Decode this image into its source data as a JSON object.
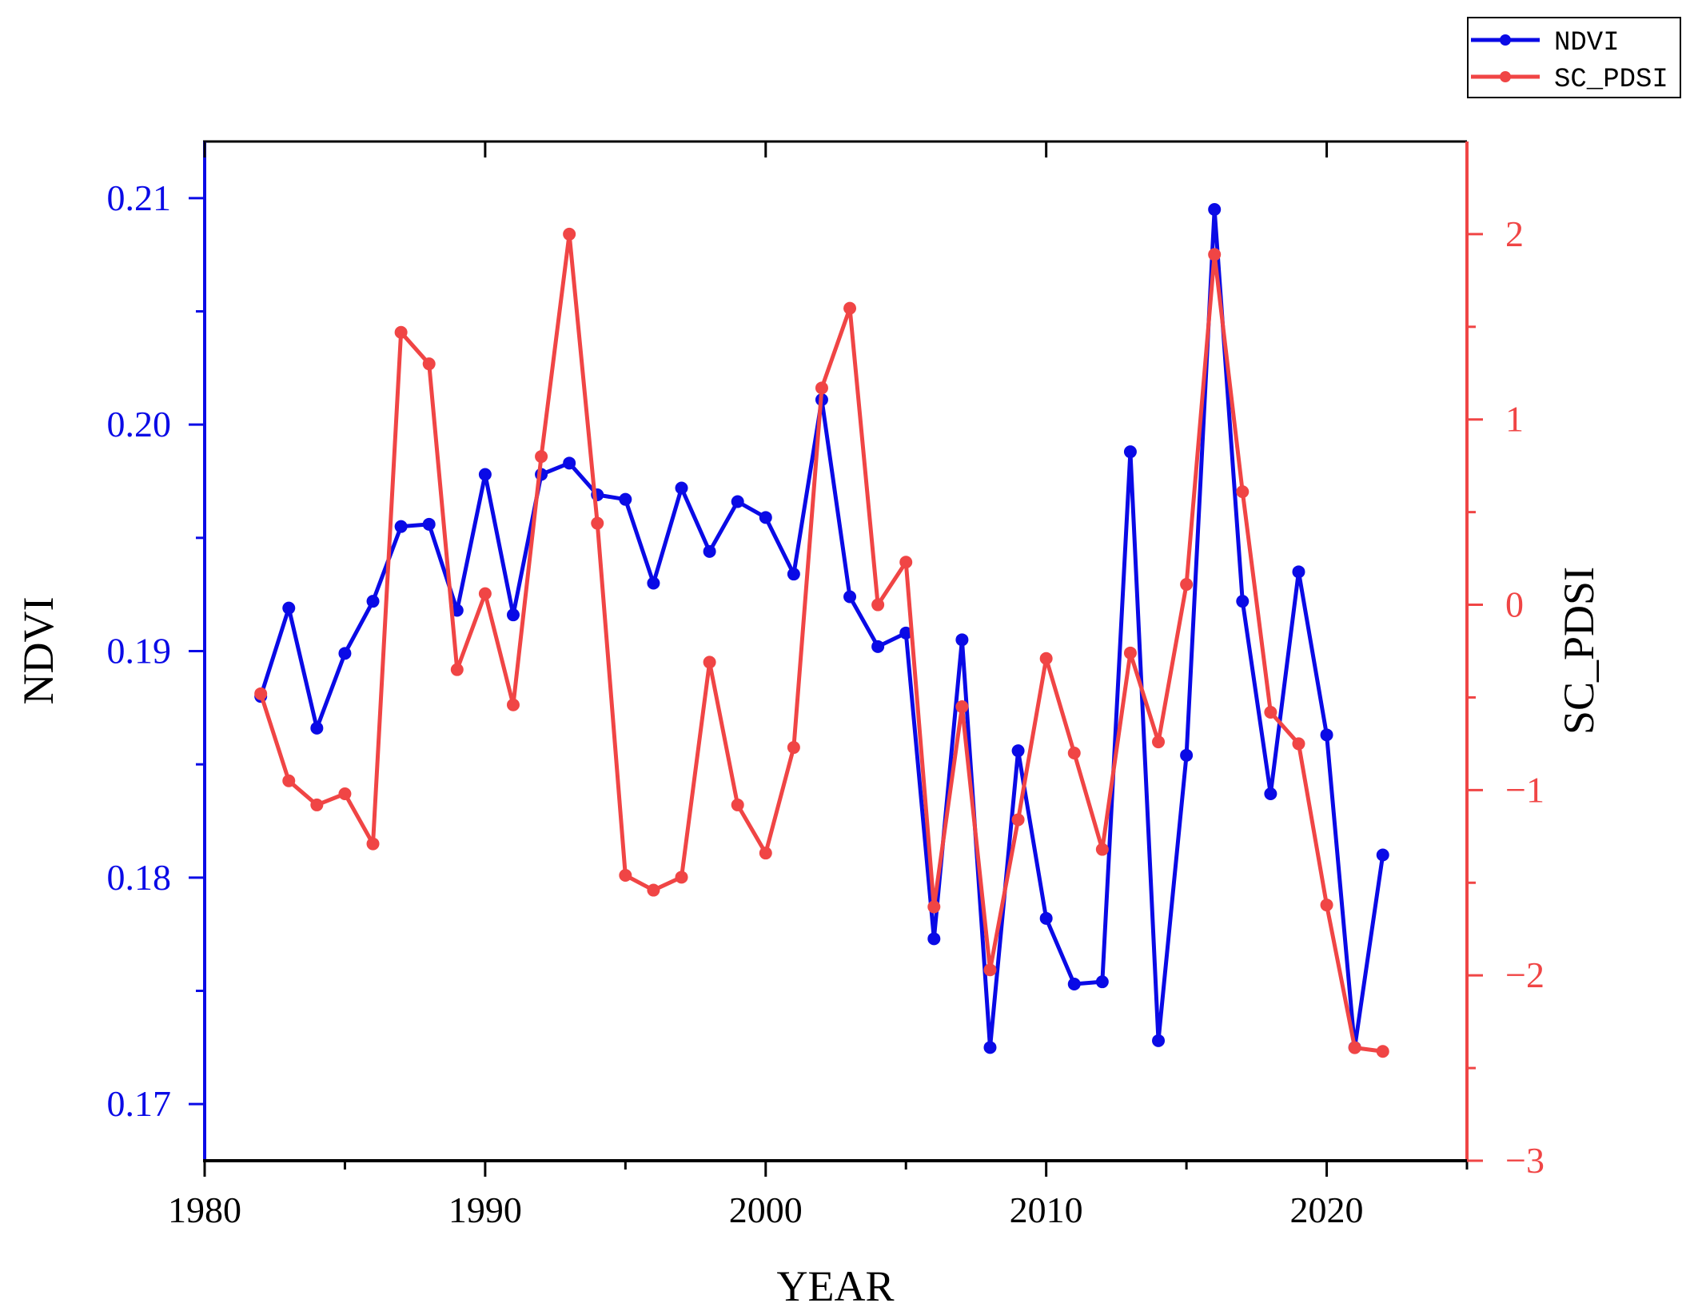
{
  "colors": {
    "ndvi": "#0a0ae6",
    "pdsi": "#f04545",
    "axis": "#000000"
  },
  "chart_data": {
    "type": "line",
    "xlabel": "YEAR",
    "ylabel_left": "NDVI",
    "ylabel_right": "SC_PDSI",
    "xlim": [
      1980,
      2025
    ],
    "ylim_left": [
      0.1675,
      0.2125
    ],
    "ylim_right": [
      -3,
      2.5
    ],
    "grid": false,
    "legend_position": "top-right",
    "x_ticks": [
      1980,
      1990,
      2000,
      2010,
      2020
    ],
    "x_tick_labels": [
      "1980",
      "1990",
      "2000",
      "2010",
      "2020"
    ],
    "y_left_ticks": [
      0.17,
      0.18,
      0.19,
      0.2,
      0.21
    ],
    "y_left_tick_labels": [
      "0.17",
      "0.18",
      "0.19",
      "0.20",
      "0.21"
    ],
    "y_right_ticks": [
      -3,
      -2,
      -1,
      0,
      1,
      2
    ],
    "y_right_tick_labels": [
      "−3",
      "−2",
      "−1",
      "0",
      "1",
      "2"
    ],
    "x": [
      1982,
      1983,
      1984,
      1985,
      1986,
      1987,
      1988,
      1989,
      1990,
      1991,
      1992,
      1993,
      1994,
      1995,
      1996,
      1997,
      1998,
      1999,
      2000,
      2001,
      2002,
      2003,
      2004,
      2005,
      2006,
      2007,
      2008,
      2009,
      2010,
      2011,
      2012,
      2013,
      2014,
      2015,
      2016,
      2017,
      2018,
      2019,
      2020,
      2021,
      2022
    ],
    "series": [
      {
        "name": "NDVI",
        "axis": "left",
        "values": [
          0.188,
          0.1919,
          0.1866,
          0.1899,
          0.1922,
          0.1955,
          0.1956,
          0.1918,
          0.1978,
          0.1916,
          0.1978,
          0.1983,
          0.1969,
          0.1967,
          0.193,
          0.1972,
          0.1944,
          0.1966,
          0.1959,
          0.1934,
          0.2011,
          0.1924,
          0.1902,
          0.1908,
          0.1773,
          0.1905,
          0.1725,
          0.1856,
          0.1782,
          0.1753,
          0.1754,
          0.1988,
          0.1728,
          0.1854,
          0.2095,
          0.1922,
          0.1837,
          0.1935,
          0.1863,
          0.1725,
          0.181
        ]
      },
      {
        "name": "SC_PDSI",
        "axis": "right",
        "values": [
          -0.48,
          -0.95,
          -1.08,
          -1.02,
          -1.29,
          1.47,
          1.3,
          -0.35,
          0.06,
          -0.54,
          0.8,
          2.0,
          0.44,
          -1.46,
          -1.54,
          -1.47,
          -0.31,
          -1.08,
          -1.34,
          -0.77,
          1.17,
          1.6,
          0.0,
          0.23,
          -1.63,
          -0.55,
          -1.97,
          -1.16,
          -0.29,
          -0.8,
          -1.32,
          -0.26,
          -0.74,
          0.11,
          1.89,
          0.61,
          -0.58,
          -0.75,
          -1.62,
          -2.39,
          -2.41
        ]
      }
    ]
  }
}
